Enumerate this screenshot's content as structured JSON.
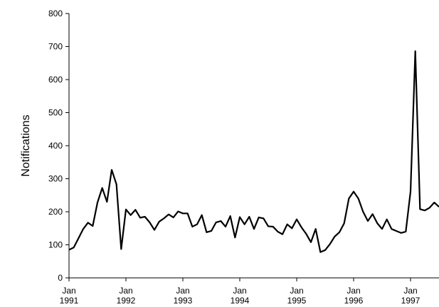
{
  "chart_data": {
    "type": "line",
    "title": "",
    "xlabel": "",
    "ylabel": "Notifications",
    "ylim": [
      0,
      800
    ],
    "yticks": [
      0,
      100,
      200,
      300,
      400,
      500,
      600,
      700,
      800
    ],
    "xticks": [
      {
        "x": 1991.0,
        "line1": "Jan",
        "line2": "1991"
      },
      {
        "x": 1992.0,
        "line1": "Jan",
        "line2": "1992"
      },
      {
        "x": 1993.0,
        "line1": "Jan",
        "line2": "1993"
      },
      {
        "x": 1994.0,
        "line1": "Jan",
        "line2": "1994"
      },
      {
        "x": 1995.0,
        "line1": "Jan",
        "line2": "1995"
      },
      {
        "x": 1996.0,
        "line1": "Jan",
        "line2": "1996"
      },
      {
        "x": 1997.0,
        "line1": "Jan",
        "line2": "1997"
      }
    ],
    "xlim_years": [
      1991.0,
      1997.5
    ],
    "grid": false,
    "legend": "none",
    "colors": {
      "line": "#000000",
      "axis": "#000000"
    },
    "series": [
      {
        "start_year": 1991,
        "start_month": 1,
        "values": [
          85,
          92,
          120,
          148,
          167,
          157,
          228,
          272,
          230,
          327,
          283,
          87,
          207,
          190,
          206,
          182,
          185,
          168,
          145,
          170,
          180,
          192,
          183,
          201,
          195,
          195,
          155,
          162,
          190,
          138,
          142,
          168,
          172,
          155,
          187,
          122,
          184,
          162,
          185,
          148,
          183,
          180,
          156,
          155,
          140,
          132,
          162,
          150,
          177,
          153,
          133,
          108,
          148,
          78,
          84,
          102,
          125,
          138,
          165,
          240,
          261,
          240,
          200,
          172,
          193,
          165,
          148,
          177,
          148,
          142,
          136,
          140,
          261,
          686,
          208,
          204,
          212,
          228,
          215
        ]
      }
    ]
  }
}
